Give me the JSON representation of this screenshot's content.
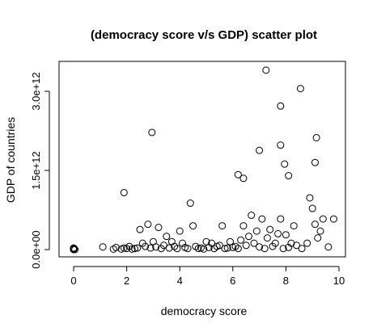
{
  "chart_data": {
    "type": "scatter",
    "title": "(democracy score v/s GDP) scatter plot",
    "xlabel": "democracy score",
    "ylabel": "GDP of countries",
    "xlim": [
      0,
      10
    ],
    "ylim": [
      0,
      3600000000000.0
    ],
    "x_ticks": [
      0,
      2,
      4,
      6,
      8,
      10
    ],
    "x_tick_labels": [
      "0",
      "2",
      "4",
      "6",
      "8",
      "10"
    ],
    "y_ticks": [
      0,
      1500000000000.0,
      3000000000000.0
    ],
    "y_tick_labels": [
      "0.0e+00",
      "1.5e+12",
      "3.0e+12"
    ],
    "grid": false,
    "legend": "none",
    "marker": "open-circle",
    "marker_color": "#000000",
    "points": [
      [
        0,
        0
      ],
      [
        0,
        10000000000.0
      ],
      [
        0.02,
        20000000000.0
      ],
      [
        0,
        30000000000.0
      ],
      [
        0.05,
        0
      ],
      [
        1.1,
        50000000000.0
      ],
      [
        1.5,
        10000000000.0
      ],
      [
        1.6,
        40000000000.0
      ],
      [
        1.8,
        10000000000.0
      ],
      [
        1.9,
        30000000000.0
      ],
      [
        2.0,
        20000000000.0
      ],
      [
        2.1,
        60000000000.0
      ],
      [
        2.2,
        10000000000.0
      ],
      [
        2.3,
        20000000000.0
      ],
      [
        2.4,
        30000000000.0
      ],
      [
        2.5,
        380000000000.0
      ],
      [
        2.6,
        120000000000.0
      ],
      [
        2.7,
        60000000000.0
      ],
      [
        2.8,
        480000000000.0
      ],
      [
        2.9,
        30000000000.0
      ],
      [
        3.0,
        150000000000.0
      ],
      [
        3.1,
        50000000000.0
      ],
      [
        3.2,
        420000000000.0
      ],
      [
        3.3,
        20000000000.0
      ],
      [
        3.4,
        80000000000.0
      ],
      [
        3.5,
        250000000000.0
      ],
      [
        3.6,
        30000000000.0
      ],
      [
        3.7,
        150000000000.0
      ],
      [
        3.8,
        60000000000.0
      ],
      [
        3.9,
        20000000000.0
      ],
      [
        4.0,
        350000000000.0
      ],
      [
        4.1,
        120000000000.0
      ],
      [
        4.2,
        40000000000.0
      ],
      [
        4.3,
        20000000000.0
      ],
      [
        4.5,
        450000000000.0
      ],
      [
        4.6,
        60000000000.0
      ],
      [
        4.7,
        20000000000.0
      ],
      [
        4.8,
        30000000000.0
      ],
      [
        4.9,
        10000000000.0
      ],
      [
        5.0,
        150000000000.0
      ],
      [
        5.1,
        40000000000.0
      ],
      [
        5.2,
        120000000000.0
      ],
      [
        5.3,
        20000000000.0
      ],
      [
        5.4,
        60000000000.0
      ],
      [
        5.5,
        80000000000.0
      ],
      [
        5.6,
        450000000000.0
      ],
      [
        5.7,
        20000000000.0
      ],
      [
        5.8,
        30000000000.0
      ],
      [
        5.9,
        150000000000.0
      ],
      [
        6.0,
        40000000000.0
      ],
      [
        6.1,
        60000000000.0
      ],
      [
        6.2,
        20000000000.0
      ],
      [
        6.3,
        180000000000.0
      ],
      [
        6.4,
        450000000000.0
      ],
      [
        6.5,
        80000000000.0
      ],
      [
        6.6,
        250000000000.0
      ],
      [
        6.7,
        650000000000.0
      ],
      [
        6.8,
        120000000000.0
      ],
      [
        6.9,
        350000000000.0
      ],
      [
        7.0,
        50000000000.0
      ],
      [
        7.1,
        580000000000.0
      ],
      [
        7.2,
        20000000000.0
      ],
      [
        7.3,
        220000000000.0
      ],
      [
        7.4,
        380000000000.0
      ],
      [
        7.5,
        60000000000.0
      ],
      [
        7.6,
        120000000000.0
      ],
      [
        7.7,
        300000000000.0
      ],
      [
        7.8,
        580000000000.0
      ],
      [
        7.9,
        20000000000.0
      ],
      [
        8.0,
        280000000000.0
      ],
      [
        8.1,
        40000000000.0
      ],
      [
        8.2,
        120000000000.0
      ],
      [
        8.3,
        450000000000.0
      ],
      [
        8.4,
        80000000000.0
      ],
      [
        8.6,
        20000000000.0
      ],
      [
        8.8,
        120000000000.0
      ],
      [
        8.9,
        980000000000.0
      ],
      [
        9.0,
        780000000000.0
      ],
      [
        9.1,
        480000000000.0
      ],
      [
        9.2,
        220000000000.0
      ],
      [
        9.3,
        350000000000.0
      ],
      [
        9.4,
        580000000000.0
      ],
      [
        9.6,
        50000000000.0
      ],
      [
        9.8,
        580000000000.0
      ],
      [
        1.9,
        1080000000000.0
      ],
      [
        2.95,
        2220000000000.0
      ],
      [
        4.4,
        880000000000.0
      ],
      [
        6.2,
        1420000000000.0
      ],
      [
        6.4,
        1350000000000.0
      ],
      [
        7.0,
        1880000000000.0
      ],
      [
        7.25,
        3400000000000.0
      ],
      [
        7.8,
        2720000000000.0
      ],
      [
        7.8,
        1980000000000.0
      ],
      [
        7.95,
        1620000000000.0
      ],
      [
        8.1,
        1400000000000.0
      ],
      [
        8.55,
        3050000000000.0
      ],
      [
        9.1,
        1650000000000.0
      ],
      [
        9.15,
        2120000000000.0
      ]
    ]
  }
}
